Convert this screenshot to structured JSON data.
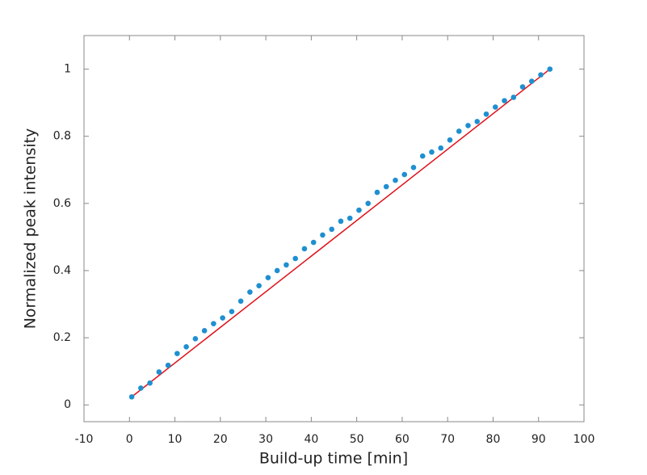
{
  "chart_data": {
    "type": "scatter",
    "xlabel": "Build-up time [min]",
    "ylabel": "Normalized peak intensity",
    "series": [
      {
        "style": "markers",
        "color": "#1f8fd0",
        "x": [
          0.5,
          2.5,
          4.5,
          6.5,
          8.5,
          10.5,
          12.5,
          14.5,
          16.5,
          18.5,
          20.5,
          22.5,
          24.5,
          26.5,
          28.5,
          30.5,
          32.5,
          34.5,
          36.5,
          38.5,
          40.5,
          42.5,
          44.5,
          46.5,
          48.5,
          50.5,
          52.5,
          54.5,
          56.5,
          58.5,
          60.5,
          62.5,
          64.5,
          66.5,
          68.5,
          70.5,
          72.5,
          74.5,
          76.5,
          78.5,
          80.5,
          82.5,
          84.5,
          86.5,
          88.5,
          90.5,
          92.5
        ],
        "values": [
          0.024,
          0.05,
          0.065,
          0.098,
          0.118,
          0.153,
          0.173,
          0.197,
          0.221,
          0.242,
          0.259,
          0.278,
          0.309,
          0.336,
          0.355,
          0.379,
          0.4,
          0.417,
          0.436,
          0.465,
          0.484,
          0.506,
          0.523,
          0.547,
          0.556,
          0.58,
          0.6,
          0.633,
          0.65,
          0.669,
          0.686,
          0.707,
          0.741,
          0.753,
          0.765,
          0.789,
          0.815,
          0.832,
          0.844,
          0.866,
          0.887,
          0.906,
          0.916,
          0.947,
          0.964,
          0.983,
          1.0
        ]
      },
      {
        "style": "line",
        "color": "#e0101a",
        "x": [
          0.5,
          92.5
        ],
        "values": [
          0.024,
          1.0
        ]
      }
    ],
    "xlim": [
      -10,
      100
    ],
    "xticks": [
      -10,
      0,
      10,
      20,
      30,
      40,
      50,
      60,
      70,
      80,
      90,
      100
    ],
    "ylim": [
      -0.05,
      1.1
    ],
    "yticks": [
      0,
      0.2,
      0.4,
      0.6,
      0.8,
      1
    ]
  }
}
